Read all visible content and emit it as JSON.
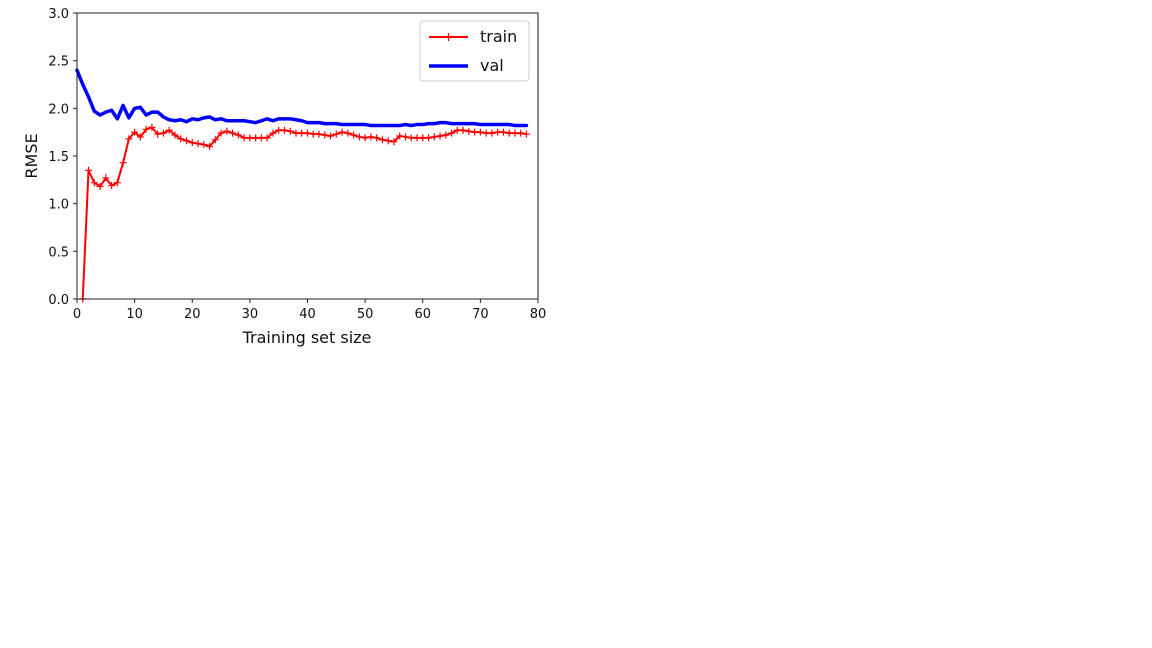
{
  "chart_data": {
    "type": "line",
    "xlabel": "Training set size",
    "ylabel": "RMSE",
    "xlim": [
      0,
      80
    ],
    "ylim": [
      0,
      3.0
    ],
    "xticks": [
      "0",
      "10",
      "20",
      "30",
      "40",
      "50",
      "60",
      "70",
      "80"
    ],
    "yticks": [
      "0.0",
      "0.5",
      "1.0",
      "1.5",
      "2.0",
      "2.5",
      "3.0"
    ],
    "grid": false,
    "legend_position": "top-right",
    "series": [
      {
        "name": "train",
        "color": "#ff0000",
        "marker": "+",
        "x": [
          1,
          2,
          3,
          4,
          5,
          6,
          7,
          8,
          9,
          10,
          11,
          12,
          13,
          14,
          15,
          16,
          17,
          18,
          19,
          20,
          21,
          22,
          23,
          24,
          25,
          26,
          27,
          28,
          29,
          30,
          31,
          32,
          33,
          34,
          35,
          36,
          37,
          38,
          39,
          40,
          41,
          42,
          43,
          44,
          45,
          46,
          47,
          48,
          49,
          50,
          51,
          52,
          53,
          54,
          55,
          56,
          57,
          58,
          59,
          60,
          61,
          62,
          63,
          64,
          65,
          66,
          67,
          68,
          69,
          70,
          71,
          72,
          73,
          74,
          75,
          76,
          77,
          78
        ],
        "y": [
          0.0,
          1.35,
          1.22,
          1.18,
          1.27,
          1.19,
          1.22,
          1.43,
          1.68,
          1.75,
          1.7,
          1.78,
          1.8,
          1.73,
          1.74,
          1.77,
          1.72,
          1.68,
          1.66,
          1.64,
          1.63,
          1.62,
          1.6,
          1.67,
          1.74,
          1.76,
          1.74,
          1.72,
          1.69,
          1.69,
          1.69,
          1.69,
          1.69,
          1.74,
          1.77,
          1.77,
          1.76,
          1.74,
          1.74,
          1.74,
          1.73,
          1.73,
          1.72,
          1.71,
          1.73,
          1.75,
          1.74,
          1.72,
          1.7,
          1.69,
          1.7,
          1.69,
          1.67,
          1.66,
          1.65,
          1.71,
          1.7,
          1.69,
          1.69,
          1.69,
          1.69,
          1.7,
          1.71,
          1.72,
          1.74,
          1.77,
          1.77,
          1.76,
          1.75,
          1.75,
          1.74,
          1.74,
          1.75,
          1.75,
          1.74,
          1.74,
          1.74,
          1.73
        ]
      },
      {
        "name": "val",
        "color": "#0000ff",
        "x": [
          0,
          1,
          2,
          3,
          4,
          5,
          6,
          7,
          8,
          9,
          10,
          11,
          12,
          13,
          14,
          15,
          16,
          17,
          18,
          19,
          20,
          21,
          22,
          23,
          24,
          25,
          26,
          27,
          28,
          29,
          30,
          31,
          32,
          33,
          34,
          35,
          36,
          37,
          38,
          39,
          40,
          41,
          42,
          43,
          44,
          45,
          46,
          47,
          48,
          49,
          50,
          51,
          52,
          53,
          54,
          55,
          56,
          57,
          58,
          59,
          60,
          61,
          62,
          63,
          64,
          65,
          66,
          67,
          68,
          69,
          70,
          71,
          72,
          73,
          74,
          75,
          76,
          77,
          78
        ],
        "y": [
          2.4,
          2.25,
          2.12,
          1.97,
          1.93,
          1.96,
          1.98,
          1.89,
          2.03,
          1.9,
          2.0,
          2.01,
          1.93,
          1.96,
          1.96,
          1.91,
          1.88,
          1.87,
          1.88,
          1.86,
          1.89,
          1.88,
          1.9,
          1.91,
          1.88,
          1.89,
          1.87,
          1.87,
          1.87,
          1.87,
          1.86,
          1.85,
          1.87,
          1.89,
          1.87,
          1.89,
          1.89,
          1.89,
          1.88,
          1.87,
          1.85,
          1.85,
          1.85,
          1.84,
          1.84,
          1.84,
          1.83,
          1.83,
          1.83,
          1.83,
          1.83,
          1.82,
          1.82,
          1.82,
          1.82,
          1.82,
          1.82,
          1.83,
          1.82,
          1.83,
          1.83,
          1.84,
          1.84,
          1.85,
          1.85,
          1.84,
          1.84,
          1.84,
          1.84,
          1.84,
          1.83,
          1.83,
          1.83,
          1.83,
          1.83,
          1.83,
          1.82,
          1.82,
          1.82
        ]
      }
    ]
  }
}
